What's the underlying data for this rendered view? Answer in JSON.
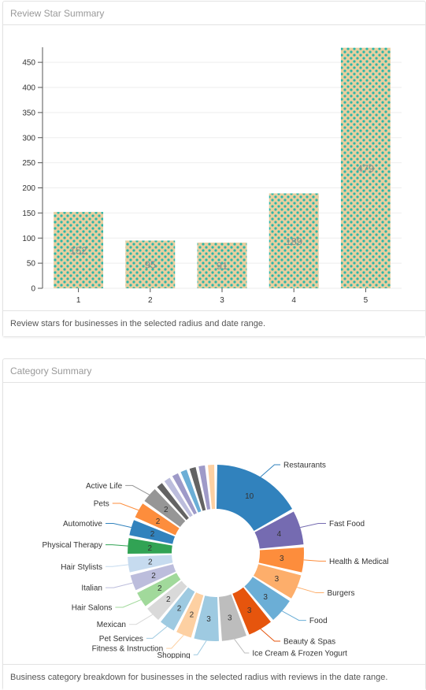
{
  "review_panel": {
    "title": "Review Star Summary",
    "footer": "Review stars for businesses in the selected radius and date range."
  },
  "category_panel": {
    "title": "Category Summary",
    "footer": "Business category breakdown for businesses in the selected radius with reviews in the date range."
  },
  "chart_data": [
    {
      "type": "bar",
      "categories": [
        "1",
        "2",
        "3",
        "4",
        "5"
      ],
      "values": [
        152,
        95,
        91,
        189,
        479
      ],
      "yticks": [
        0,
        50,
        100,
        150,
        200,
        250,
        300,
        350,
        400,
        450
      ],
      "ylim": [
        0,
        480
      ],
      "grid": true,
      "bar_fill": "#e8cfa0",
      "dot_color": "#2ab7a9"
    },
    {
      "type": "pie",
      "donut": true,
      "labels": [
        "Restaurants",
        "Fast Food",
        "Health & Medical",
        "Burgers",
        "Food",
        "Beauty & Spas",
        "Ice Cream & Frozen Yogurt",
        "Shopping",
        "Fitness & Instruction",
        "Pet Services",
        "Mexican",
        "Hair Salons",
        "Italian",
        "Hair Stylists",
        "Physical Therapy",
        "Automotive",
        "Pets",
        "Active Life",
        "",
        "",
        "",
        "",
        "",
        "",
        ""
      ],
      "values": [
        10,
        4,
        3,
        3,
        3,
        3,
        3,
        3,
        2,
        2,
        2,
        2,
        2,
        2,
        2,
        2,
        2,
        2,
        1,
        1,
        1,
        1,
        1,
        1,
        1
      ],
      "colors": [
        "#3182bd",
        "#756bb1",
        "#fd8d3c",
        "#fdae6b",
        "#6baed6",
        "#e6550d",
        "#bdbdbd",
        "#9ecae1",
        "#fdd0a2",
        "#9ecae1",
        "#d9d9d9",
        "#a1d99b",
        "#bcbddc",
        "#c6dbef",
        "#31a354",
        "#3182bd",
        "#fd8d3c",
        "#969696",
        "#636363",
        "#bcbddc",
        "#9e9ac8",
        "#6baed6",
        "#636363",
        "#9e9ac8",
        "#fdd0a2"
      ]
    }
  ]
}
